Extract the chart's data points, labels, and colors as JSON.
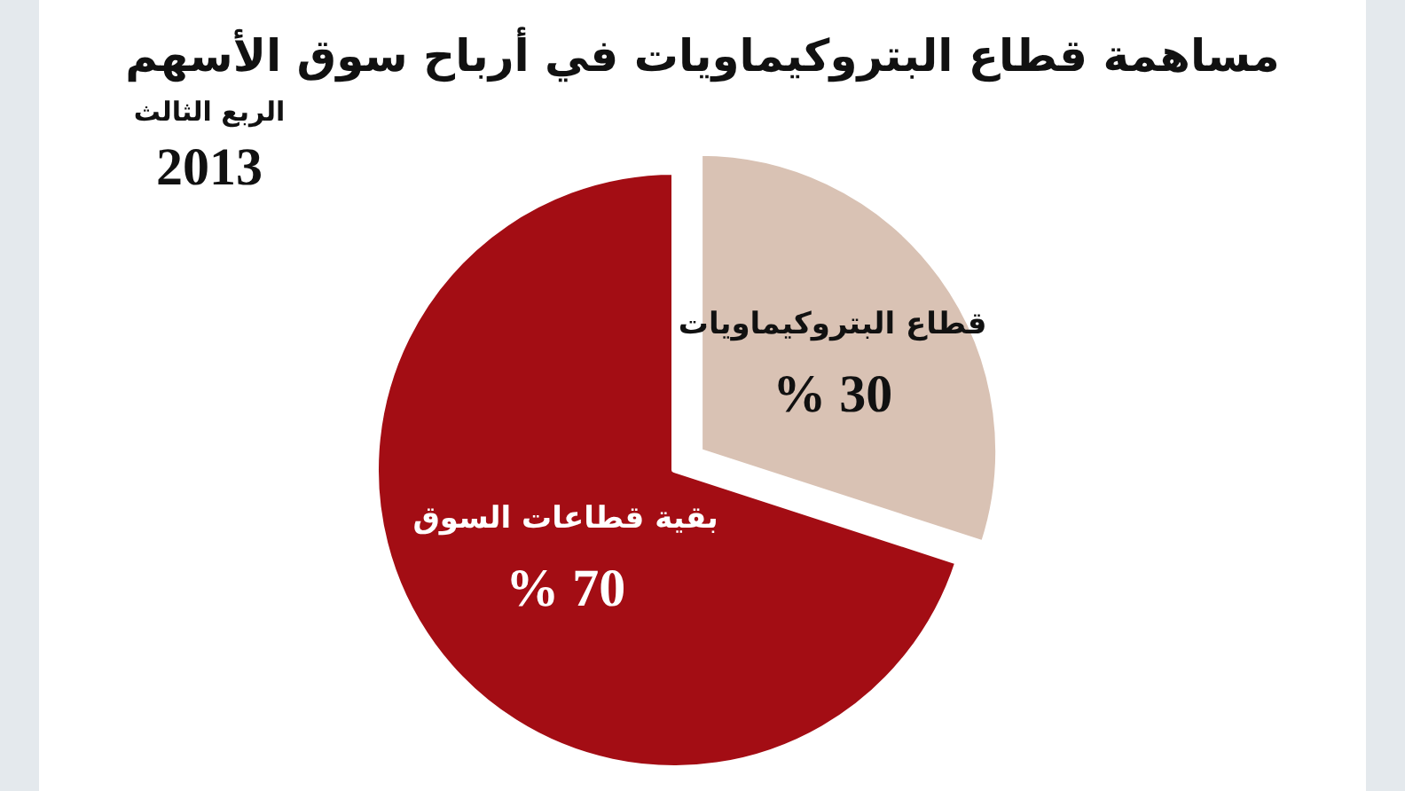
{
  "chart_data": {
    "type": "pie",
    "title": "مساهمة قطاع البتروكيماويات في أرباح سوق الأسهم",
    "annotations": [
      "الربع الثالث",
      "2013"
    ],
    "categories": [
      "قطاع البتروكيماويات",
      "بقية قطاعات السوق"
    ],
    "values": [
      30,
      70
    ],
    "colors": [
      "#d9c2b4",
      "#a30d14"
    ],
    "value_labels": [
      "% 30",
      "% 70"
    ]
  }
}
